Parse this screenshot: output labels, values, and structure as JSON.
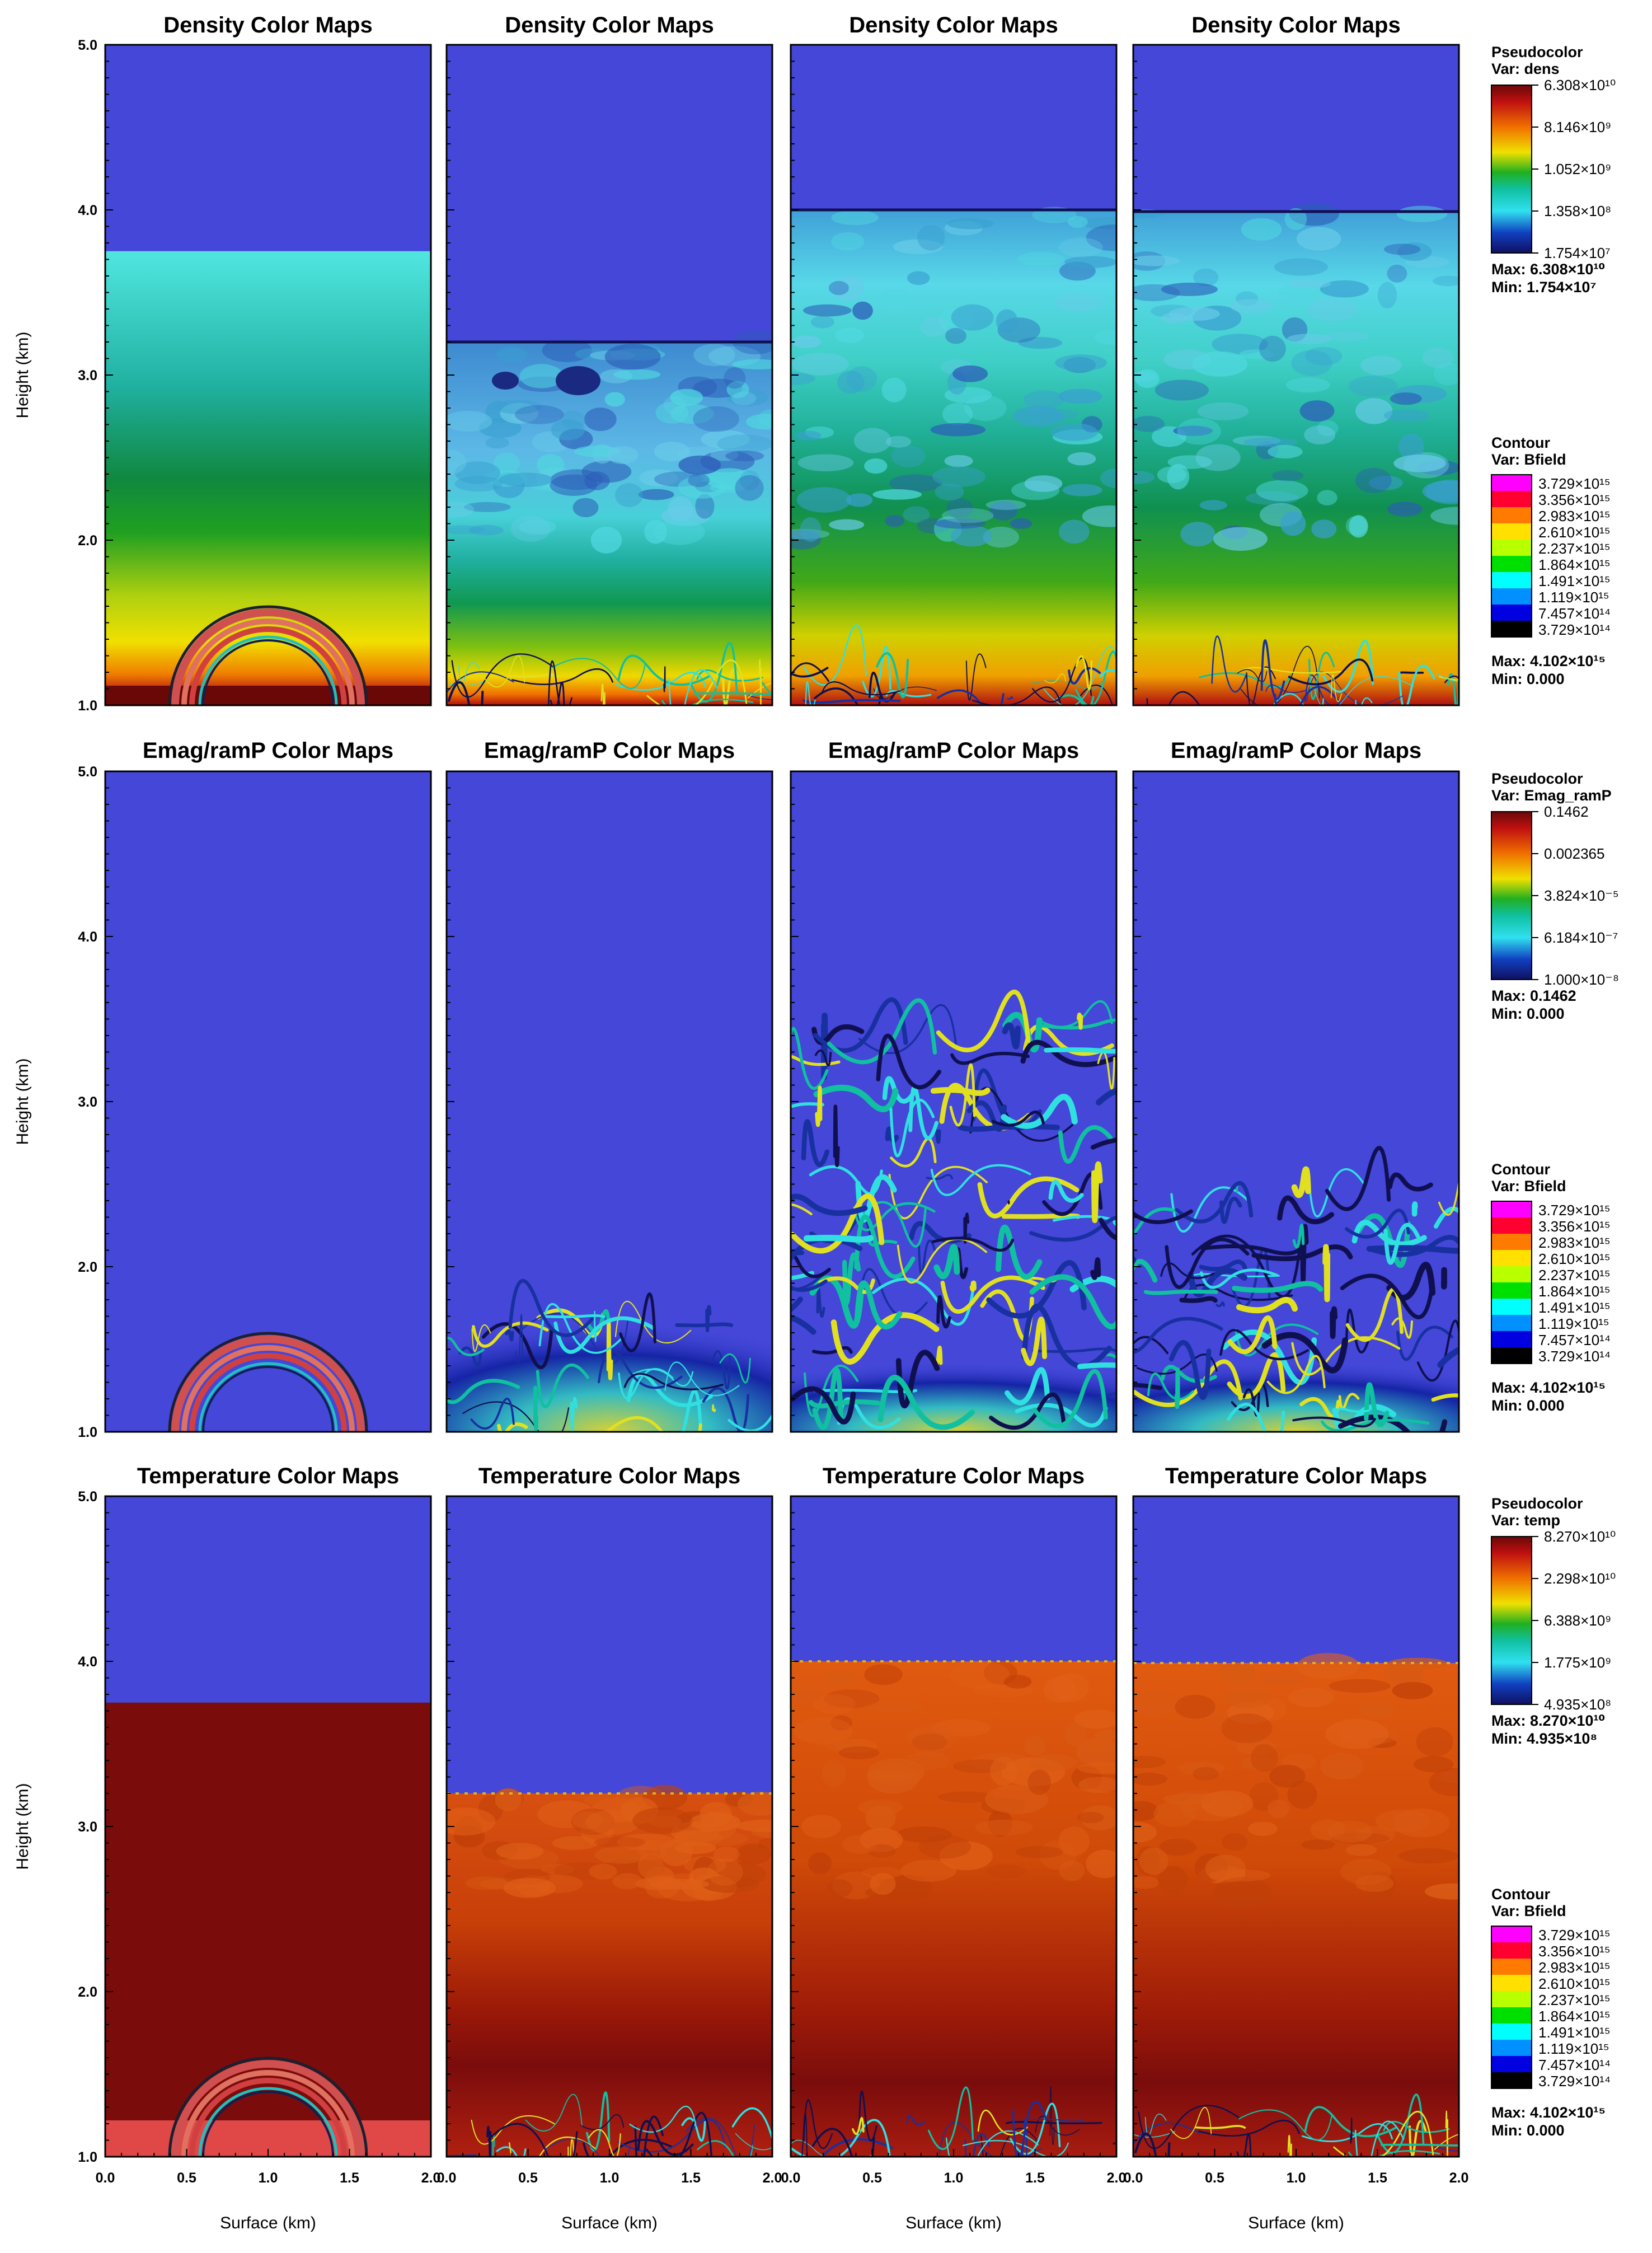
{
  "figure": {
    "x_axis_label": "Surface (km)",
    "y_axis_label": "Height (km)",
    "x_ticks": [
      "0.0",
      "0.5",
      "1.0",
      "1.5",
      "2.0"
    ],
    "x_tick_values": [
      0.0,
      0.5,
      1.0,
      1.5,
      2.0
    ],
    "y_ticks": [
      "1.0",
      "2.0",
      "3.0",
      "4.0",
      "5.0"
    ],
    "y_tick_values": [
      1.0,
      2.0,
      3.0,
      4.0,
      5.0
    ]
  },
  "rows": [
    {
      "title": "Density Color Maps",
      "variable": "dens",
      "panel_fronts_km": [
        3.75,
        3.2,
        4.0,
        3.99
      ],
      "pseudocolor": {
        "header": "Pseudocolor",
        "var": "Var: dens",
        "labels": [
          "6.308×10¹⁰",
          "8.146×10⁹",
          "1.052×10⁹",
          "1.358×10⁸",
          "1.754×10⁷"
        ],
        "max": "Max:  6.308×10¹⁰",
        "min": "Min:  1.754×10⁷"
      },
      "contour": {
        "header": "Contour",
        "var": "Var: Bfield",
        "labels": [
          "3.729×10¹⁵",
          "3.356×10¹⁵",
          "2.983×10¹⁵",
          "2.610×10¹⁵",
          "2.237×10¹⁵",
          "1.864×10¹⁵",
          "1.491×10¹⁵",
          "1.119×10¹⁵",
          "7.457×10¹⁴",
          "3.729×10¹⁴"
        ],
        "max": "Max:  4.102×10¹⁵",
        "min": "Min:  0.000"
      }
    },
    {
      "title": "Emag/ramP Color Maps",
      "variable": "Emag_ramP",
      "pseudocolor": {
        "header": "Pseudocolor",
        "var": "Var: Emag_ramP",
        "labels": [
          "0.1462",
          "0.002365",
          "3.824×10⁻⁵",
          "6.184×10⁻⁷",
          "1.000×10⁻⁸"
        ],
        "max": "Max:  0.1462",
        "min": "Min:  0.000"
      },
      "contour": {
        "header": "Contour",
        "var": "Var: Bfield",
        "labels": [
          "3.729×10¹⁵",
          "3.356×10¹⁵",
          "2.983×10¹⁵",
          "2.610×10¹⁵",
          "2.237×10¹⁵",
          "1.864×10¹⁵",
          "1.491×10¹⁵",
          "1.119×10¹⁵",
          "7.457×10¹⁴",
          "3.729×10¹⁴"
        ],
        "max": "Max:  4.102×10¹⁵",
        "min": "Min:  0.000"
      }
    },
    {
      "title": "Temperature Color Maps",
      "variable": "temp",
      "panel_fronts_km": [
        3.75,
        3.2,
        4.0,
        3.99
      ],
      "pseudocolor": {
        "header": "Pseudocolor",
        "var": "Var: temp",
        "labels": [
          "8.270×10¹⁰",
          "2.298×10¹⁰",
          "6.388×10⁹",
          "1.775×10⁹",
          "4.935×10⁸"
        ],
        "max": "Max:  8.270×10¹⁰",
        "min": "Min:  4.935×10⁸"
      },
      "contour": {
        "header": "Contour",
        "var": "Var: Bfield",
        "labels": [
          "3.729×10¹⁵",
          "3.356×10¹⁵",
          "2.983×10¹⁵",
          "2.610×10¹⁵",
          "2.237×10¹⁵",
          "1.864×10¹⁵",
          "1.491×10¹⁵",
          "1.119×10¹⁵",
          "7.457×10¹⁴",
          "3.729×10¹⁴"
        ],
        "max": "Max:  4.102×10¹⁵",
        "min": "Min:  0.000"
      }
    }
  ],
  "colors": {
    "background_blue": "#4447d8",
    "dark_red": "#7a0c0c",
    "cyan": "#4fe0dc",
    "contour_scale": [
      "#ff00ff",
      "#ff0030",
      "#ff7a00",
      "#ffe000",
      "#b8ff00",
      "#00e000",
      "#00ffff",
      "#0090ff",
      "#0000e0",
      "#000000"
    ]
  },
  "chart_data": {
    "type": "heatmap",
    "xlabel": "Surface (km)",
    "ylabel": "Height (km)",
    "xlim": [
      0.0,
      2.0
    ],
    "ylim": [
      1.0,
      5.0
    ],
    "panels": [
      {
        "row": "Density Color Maps",
        "columns": 4,
        "front_heights_km": [
          3.75,
          3.2,
          4.0,
          3.99
        ]
      },
      {
        "row": "Emag/ramP Color Maps",
        "columns": 4
      },
      {
        "row": "Temperature Color Maps",
        "columns": 4,
        "front_heights_km": [
          3.75,
          3.2,
          4.0,
          3.99
        ]
      }
    ],
    "legend_placement": "right"
  }
}
